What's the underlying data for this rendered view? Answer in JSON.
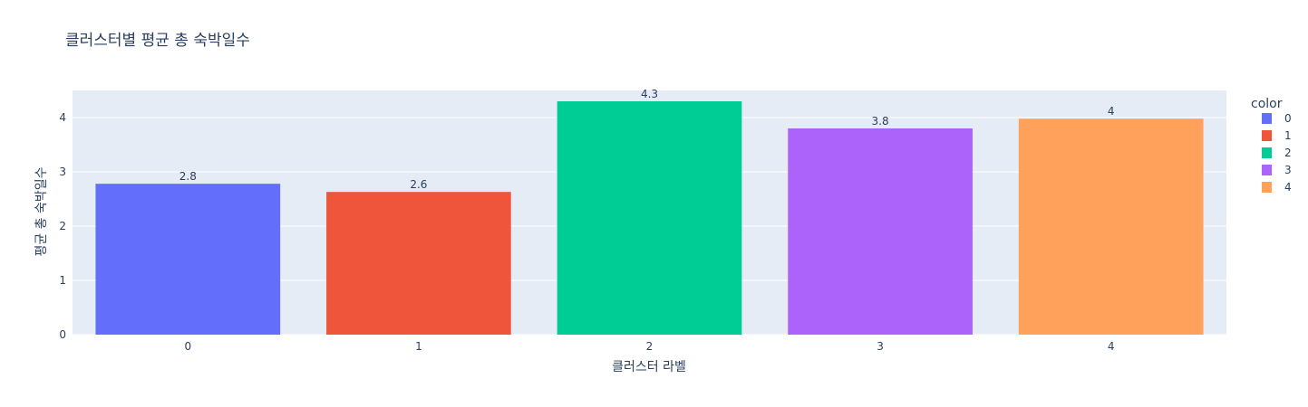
{
  "chart_data": {
    "type": "bar",
    "title": "클러스터별 평균 총 숙박일수",
    "xlabel": "클러스터 라벨",
    "ylabel": "평균 총 숙박일수",
    "categories": [
      "0",
      "1",
      "2",
      "3",
      "4"
    ],
    "values": [
      2.78,
      2.63,
      4.3,
      3.8,
      3.98
    ],
    "data_labels": [
      "2.8",
      "2.6",
      "4.3",
      "3.8",
      "4"
    ],
    "ylim": [
      0,
      4.5
    ],
    "yticks": [
      0,
      1,
      2,
      3,
      4
    ],
    "grid": true,
    "legend": {
      "title": "color",
      "placement": "right",
      "items": [
        "0",
        "1",
        "2",
        "3",
        "4"
      ]
    },
    "colors": [
      "#636efa",
      "#ef553b",
      "#00cc96",
      "#ab63fa",
      "#ffa15a"
    ],
    "plot_bgcolor": "#e5ecf6"
  }
}
